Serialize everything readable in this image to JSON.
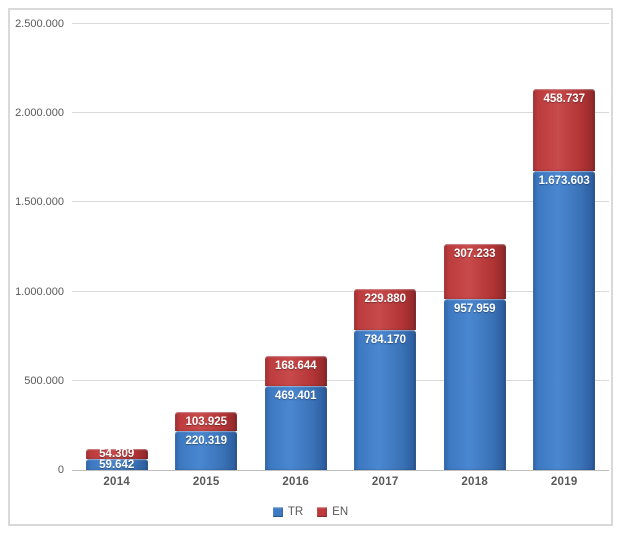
{
  "chart_data": {
    "type": "bar",
    "stacked": true,
    "categories": [
      "2014",
      "2015",
      "2016",
      "2017",
      "2018",
      "2019"
    ],
    "series": [
      {
        "name": "TR",
        "color": "#3E7BC4",
        "values": [
          59642,
          220319,
          469401,
          784170,
          957959,
          1673603
        ],
        "labels": [
          "59.642",
          "220.319",
          "469.401",
          "784.170",
          "957.959",
          "1.673.603"
        ]
      },
      {
        "name": "EN",
        "color": "#BE3A3C",
        "values": [
          54309,
          103925,
          168644,
          229880,
          307233,
          458737
        ],
        "labels": [
          "54.309",
          "103.925",
          "168.644",
          "229.880",
          "307.233",
          "458.737"
        ]
      }
    ],
    "y_axis": {
      "min": 0,
      "max": 2500000,
      "tick_interval": 500000,
      "tick_values": [
        0,
        500000,
        1000000,
        1500000,
        2000000,
        2500000
      ],
      "tick_labels": [
        "0",
        "500.000",
        "1.000.000",
        "1.500.000",
        "2.000.000",
        "2.500.000"
      ]
    },
    "grid": true,
    "legend": {
      "position": "bottom",
      "entries": [
        "TR",
        "EN"
      ]
    },
    "colors": {
      "gridline": "#D9D9D9",
      "axis_line": "#BFBFBF",
      "axis_text": "#595959",
      "bar_label_text": "#FFFFFF",
      "chart_border": "#D9D9D9",
      "background": "#FFFFFF"
    }
  }
}
